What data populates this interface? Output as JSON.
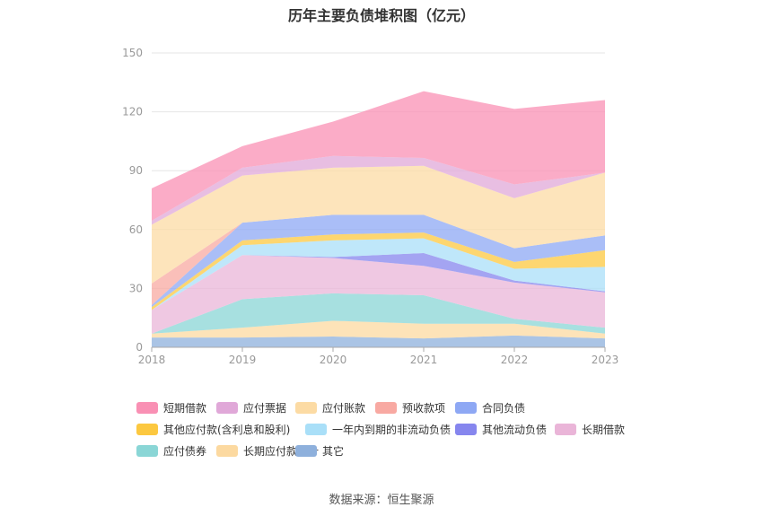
{
  "title": "历年主要负债堆积图（亿元）",
  "source": "数据来源：恒生聚源",
  "chart_data": {
    "type": "area",
    "stacked": true,
    "x": [
      "2018",
      "2019",
      "2020",
      "2021",
      "2022",
      "2023"
    ],
    "ylim": [
      0,
      150
    ],
    "yticks": [
      0,
      30,
      60,
      90,
      120,
      150
    ],
    "grid": true,
    "legend_position": "bottom",
    "series": [
      {
        "name": "其它",
        "color": "#8eb0dc",
        "values": [
          5,
          5,
          5.5,
          4.5,
          6,
          4.5
        ]
      },
      {
        "name": "长期应付款合计",
        "color": "#fcd9a0",
        "values": [
          2,
          5,
          8,
          7.5,
          6,
          2.5
        ]
      },
      {
        "name": "应付债券",
        "color": "#8ad6d6",
        "values": [
          0,
          14.5,
          14,
          14.5,
          2.5,
          3
        ]
      },
      {
        "name": "长期借款",
        "color": "#eab5d8",
        "values": [
          12,
          22.5,
          18,
          15,
          18.5,
          18
        ]
      },
      {
        "name": "其他流动负债",
        "color": "#8686ee",
        "values": [
          0,
          0,
          0.5,
          6.5,
          1,
          0.5
        ]
      },
      {
        "name": "一年内到期的非流动负债",
        "color": "#a9dff8",
        "values": [
          0,
          5,
          8.5,
          7.5,
          6,
          12.5
        ]
      },
      {
        "name": "其他应付款(含利息和股利)",
        "color": "#fcc840",
        "values": [
          1.5,
          2.5,
          3,
          3,
          3.5,
          8.5
        ]
      },
      {
        "name": "合同负债",
        "color": "#8ea8f4",
        "values": [
          1,
          9,
          10,
          9,
          7,
          7.5
        ]
      },
      {
        "name": "预收款项",
        "color": "#f8a9a2",
        "values": [
          11,
          0,
          0,
          0,
          0,
          0
        ]
      },
      {
        "name": "应付账款",
        "color": "#fcdba4",
        "values": [
          30,
          24,
          24,
          25,
          25.5,
          32
        ]
      },
      {
        "name": "应付票据",
        "color": "#e0a8d8",
        "values": [
          2,
          4,
          6,
          4,
          7,
          0
        ]
      },
      {
        "name": "短期借款",
        "color": "#f990b4",
        "values": [
          16.5,
          11,
          17.5,
          34,
          38.5,
          37
        ]
      }
    ]
  },
  "legend_rows": [
    [
      "短期借款",
      "应付票据",
      "应付账款",
      "预收款项",
      "合同负债"
    ],
    [
      "其他应付款(含利息和股利)",
      "一年内到期的非流动负债",
      "其他流动负债",
      "长期借款"
    ],
    [
      "应付债券",
      "长期应付款合计",
      "其它"
    ]
  ]
}
